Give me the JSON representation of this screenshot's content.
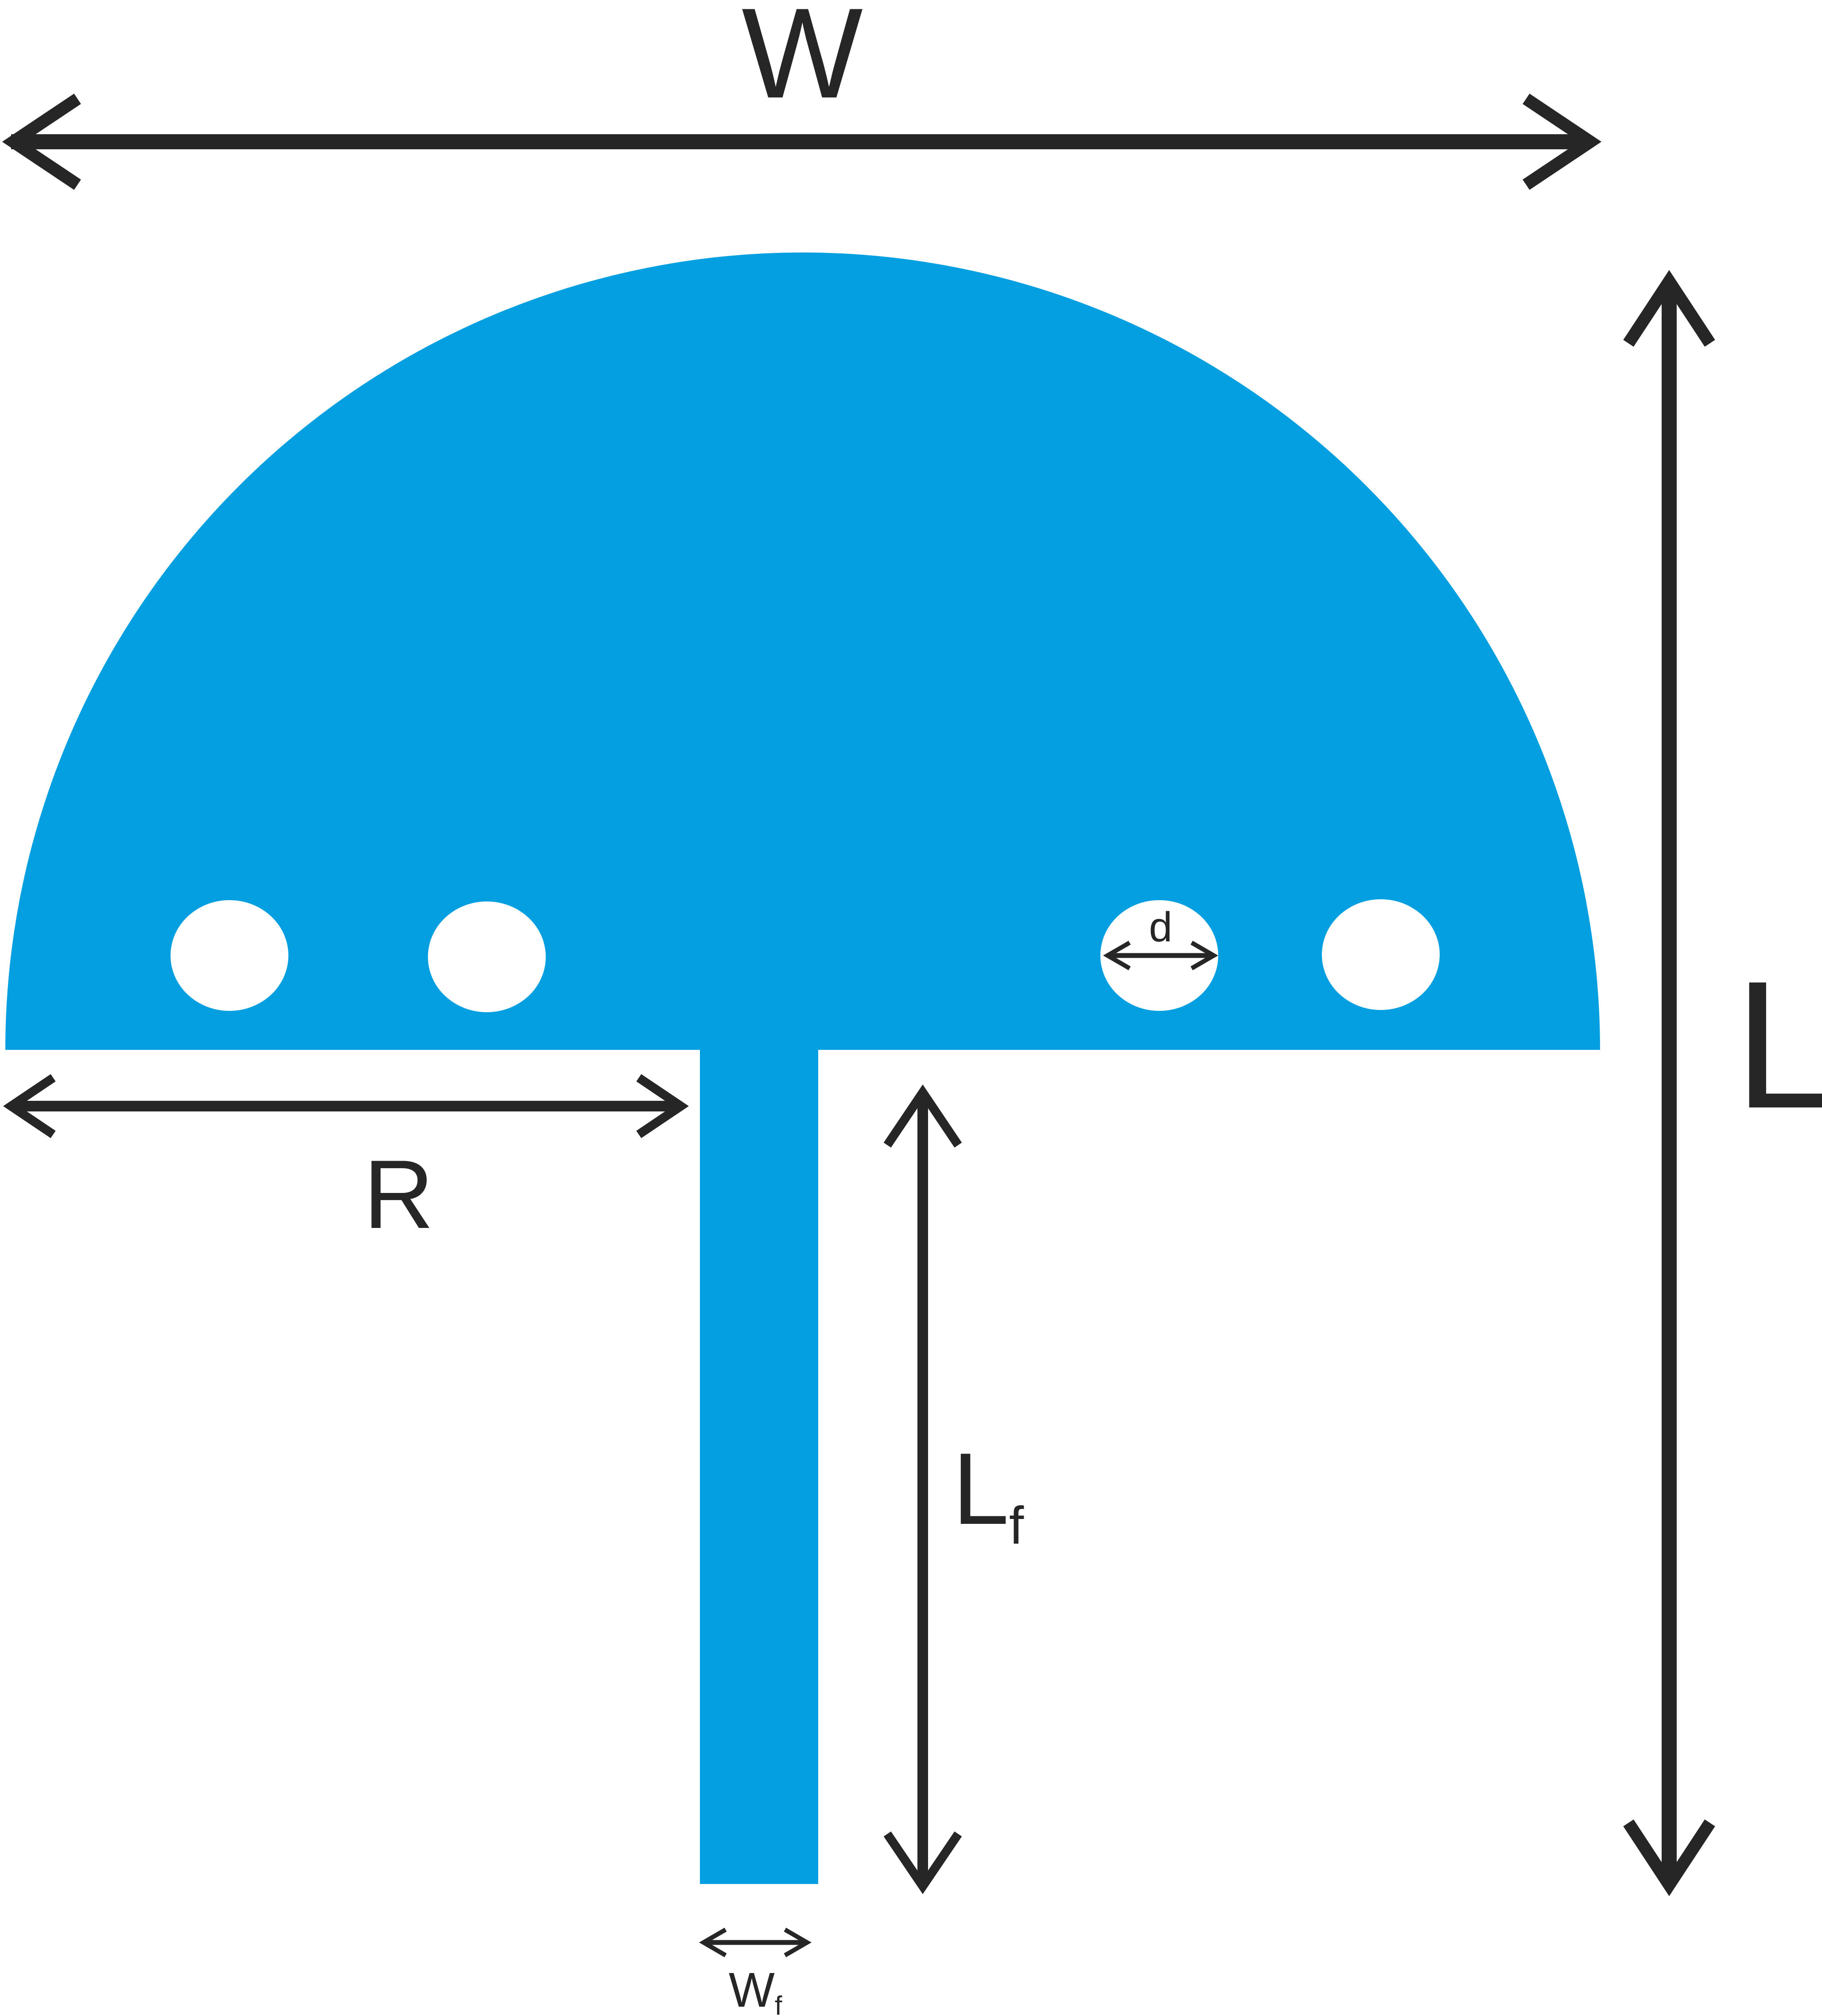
{
  "colors": {
    "patch": "#049FE1",
    "ink": "#262626",
    "background": "#FFFFFF",
    "hole": "#FFFFFF"
  },
  "labels": {
    "width": "W",
    "radius": "R",
    "length": "L",
    "feed_length_main": "L",
    "feed_length_sub": "f",
    "feed_width_main": "W",
    "feed_width_sub": "f",
    "hole_diameter": "d"
  }
}
